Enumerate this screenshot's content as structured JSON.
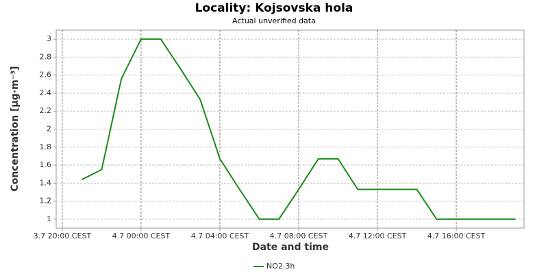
{
  "chart_data": {
    "type": "line",
    "title": "Locality: Kojsovska hola",
    "subtitle": "Actual unverified data",
    "x_label": "Date and time",
    "y_label": "Concentration [µg·m⁻³]",
    "x": [
      21,
      22,
      23,
      24,
      25,
      26,
      27,
      28,
      29,
      30,
      31,
      32,
      33,
      34,
      35,
      36,
      37,
      38,
      39,
      40,
      41,
      42,
      43
    ],
    "series": [
      {
        "name": "NO2 3h",
        "color": "#1a8a1a",
        "values": [
          1.44,
          1.55,
          2.56,
          3.0,
          3.0,
          2.67,
          2.33,
          1.67,
          1.33,
          1.0,
          1.0,
          1.33,
          1.67,
          1.67,
          1.33,
          1.33,
          1.33,
          1.33,
          1.0,
          1.0,
          1.0,
          1.0,
          1.0
        ]
      }
    ],
    "xlim": [
      19.69,
      43.44
    ],
    "xticks": [
      {
        "value": 20,
        "label": "3.7 20:00 CEST"
      },
      {
        "value": 24,
        "label": "4.7 00:00 CEST"
      },
      {
        "value": 28,
        "label": "4.7 04:00 CEST"
      },
      {
        "value": 32,
        "label": "4.7 08:00 CEST"
      },
      {
        "value": 36,
        "label": "4.7 12:00 CEST"
      },
      {
        "value": 40,
        "label": "4.7 16:00 CEST"
      }
    ],
    "ylim": [
      0.9,
      3.1
    ],
    "yticks": [
      1,
      1.2,
      1.4,
      1.6,
      1.8,
      2,
      2.2,
      2.4,
      2.6,
      2.8,
      3
    ],
    "grid": true,
    "legend": "bottom"
  }
}
